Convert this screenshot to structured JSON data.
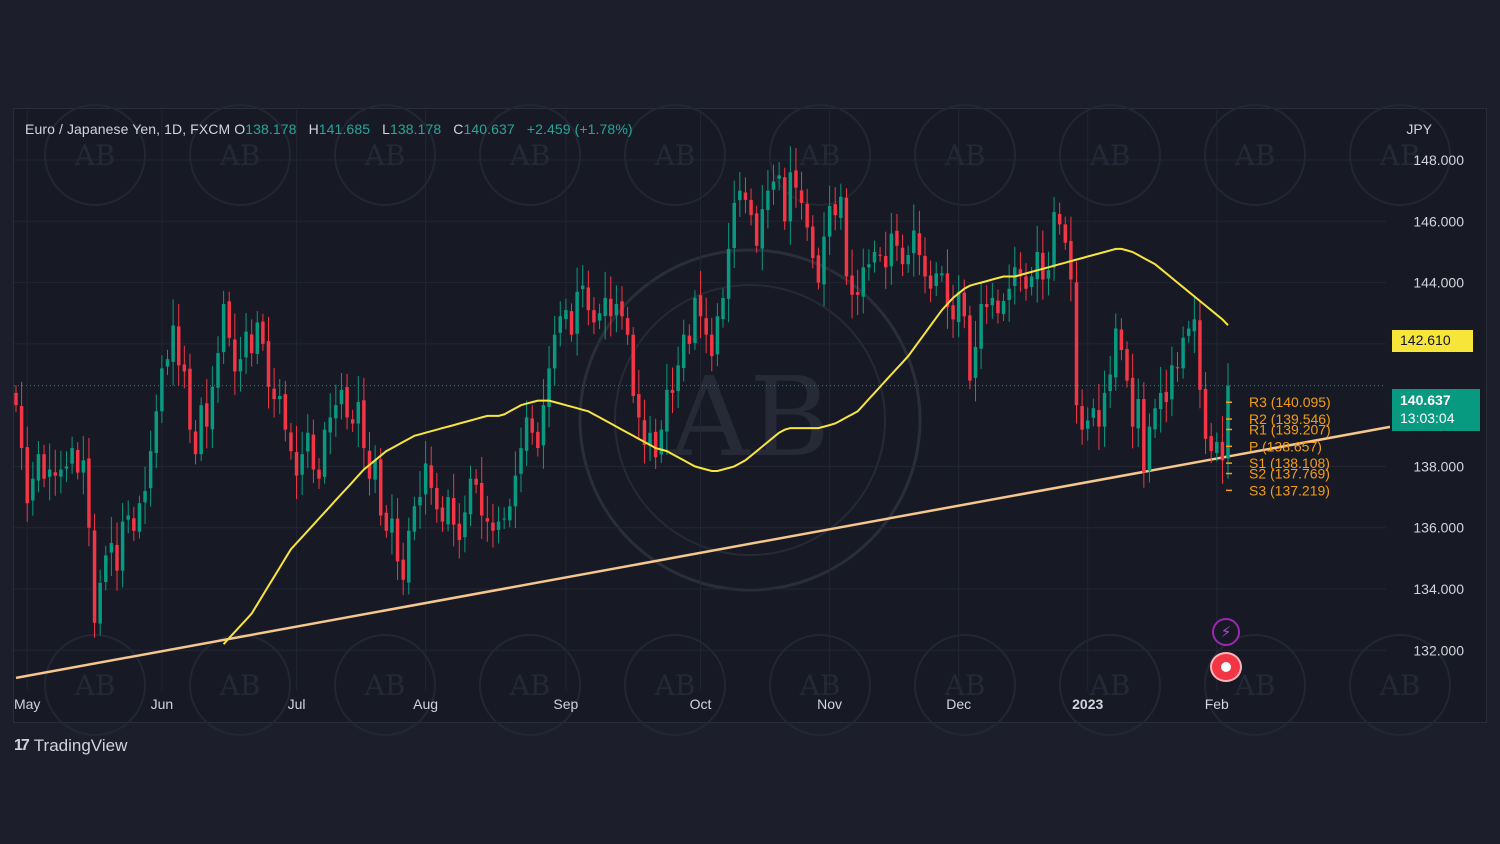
{
  "legend": {
    "symbol": "Euro / Japanese Yen, 1D, FXCM",
    "open_label": "O",
    "open": "138.178",
    "high_label": "H",
    "high": "141.685",
    "low_label": "L",
    "low": "138.178",
    "close_label": "C",
    "close": "140.637",
    "change": "+2.459 (+1.78%)"
  },
  "colors": {
    "background": "#171a24",
    "up": "#089981",
    "down": "#f23645",
    "sma": "#f7e53a",
    "trendline": "#f5c78e",
    "pivots": "#f59e0b"
  },
  "price_tags": {
    "sma_value": "142.610",
    "last_price": "140.637",
    "countdown": "13:03:04"
  },
  "footer": {
    "brand": "TradingView"
  },
  "chart_data": {
    "type": "candlestick",
    "currency": "JPY",
    "ylim": [
      130.9,
      149.6
    ],
    "y_ticks": [
      "148.000",
      "146.000",
      "144.000",
      "142.000",
      "138.000",
      "136.000",
      "134.000",
      "132.000"
    ],
    "month_labels": [
      "May",
      "Jun",
      "Jul",
      "Aug",
      "Sep",
      "Oct",
      "Nov",
      "Dec",
      "2023",
      "Feb"
    ],
    "month_positions": [
      2,
      26,
      50,
      73,
      98,
      122,
      145,
      168,
      191,
      214
    ],
    "pivot_levels": [
      {
        "label": "R3",
        "value": 140.095
      },
      {
        "label": "R2",
        "value": 139.546
      },
      {
        "label": "R1",
        "value": 139.207
      },
      {
        "label": "P",
        "value": 138.657
      },
      {
        "label": "S1",
        "value": 138.108
      },
      {
        "label": "S2",
        "value": 137.769
      },
      {
        "label": "S3",
        "value": 137.219
      }
    ],
    "last_price": 140.637,
    "sma_last": 142.61,
    "trendline": [
      [
        0,
        131.1
      ],
      [
        226,
        138.66
      ]
    ],
    "closes": [
      140.0,
      138.6,
      136.8,
      137.6,
      138.4,
      137.6,
      137.9,
      137.7,
      137.9,
      138.0,
      138.6,
      137.8,
      138.2,
      136.0,
      132.9,
      134.2,
      135.1,
      135.5,
      134.6,
      136.2,
      136.4,
      135.9,
      136.8,
      137.2,
      138.5,
      139.8,
      141.2,
      141.5,
      142.6,
      141.3,
      141.1,
      139.2,
      138.4,
      140.0,
      139.3,
      140.6,
      141.7,
      143.3,
      142.2,
      141.1,
      141.5,
      142.4,
      141.7,
      142.7,
      142.0,
      140.6,
      140.2,
      140.3,
      139.2,
      138.5,
      137.7,
      138.4,
      139.1,
      137.9,
      137.6,
      139.2,
      139.6,
      140.0,
      140.5,
      139.6,
      139.4,
      140.1,
      138.6,
      137.6,
      138.2,
      136.4,
      135.9,
      136.3,
      134.9,
      134.3,
      135.9,
      136.7,
      137.0,
      138.1,
      137.3,
      136.6,
      136.2,
      137.0,
      136.1,
      135.6,
      136.5,
      137.6,
      137.4,
      136.4,
      136.2,
      135.9,
      136.2,
      136.3,
      136.7,
      137.7,
      138.6,
      139.6,
      139.1,
      138.6,
      140.0,
      141.2,
      142.3,
      142.9,
      143.1,
      142.3,
      143.7,
      143.9,
      143.1,
      142.7,
      143.0,
      143.5,
      142.9,
      143.3,
      142.9,
      142.3,
      140.3,
      139.6,
      138.7,
      139.1,
      138.3,
      139.2,
      140.5,
      140.4,
      141.3,
      142.3,
      142.0,
      143.5,
      142.9,
      142.3,
      141.6,
      142.9,
      143.5,
      145.1,
      146.6,
      147.0,
      146.7,
      146.2,
      145.2,
      146.4,
      147.0,
      147.3,
      147.5,
      146.0,
      147.6,
      147.1,
      146.6,
      145.8,
      144.8,
      144.0,
      145.5,
      146.5,
      146.2,
      146.8,
      144.2,
      143.6,
      143.6,
      144.5,
      144.6,
      145.0,
      144.9,
      144.5,
      145.6,
      145.2,
      144.6,
      144.9,
      145.7,
      144.9,
      144.2,
      143.8,
      144.3,
      144.3,
      143.2,
      142.8,
      143.7,
      142.9,
      140.8,
      141.9,
      143.3,
      143.2,
      143.5,
      143.0,
      143.4,
      143.8,
      144.5,
      144.2,
      143.8,
      144.2,
      145.0,
      144.1,
      144.4,
      146.3,
      145.9,
      145.3,
      144.1,
      140.0,
      139.2,
      139.5,
      139.9,
      139.3,
      140.4,
      141.0,
      142.5,
      141.8,
      140.8,
      139.3,
      140.2,
      137.8,
      139.3,
      139.9,
      140.4,
      140.1,
      141.3,
      141.2,
      142.2,
      142.5,
      142.8,
      140.5,
      138.9,
      138.5,
      138.8,
      138.2,
      140.637
    ],
    "sma": [
      132.2,
      132.4,
      132.6,
      132.8,
      133.0,
      133.2,
      133.5,
      133.8,
      134.1,
      134.4,
      134.7,
      135.0,
      135.3,
      135.5,
      135.7,
      135.9,
      136.1,
      136.3,
      136.5,
      136.7,
      136.9,
      137.1,
      137.3,
      137.5,
      137.7,
      137.9,
      138.05,
      138.2,
      138.35,
      138.5,
      138.6,
      138.7,
      138.8,
      138.9,
      139.0,
      139.05,
      139.1,
      139.15,
      139.2,
      139.25,
      139.3,
      139.35,
      139.4,
      139.45,
      139.5,
      139.55,
      139.6,
      139.65,
      139.65,
      139.65,
      139.7,
      139.8,
      139.9,
      140.0,
      140.05,
      140.1,
      140.15,
      140.15,
      140.15,
      140.1,
      140.05,
      140.0,
      139.95,
      139.9,
      139.85,
      139.8,
      139.7,
      139.6,
      139.5,
      139.4,
      139.3,
      139.2,
      139.1,
      139.0,
      138.9,
      138.8,
      138.7,
      138.6,
      138.55,
      138.5,
      138.4,
      138.3,
      138.2,
      138.1,
      138.0,
      137.95,
      137.9,
      137.85,
      137.85,
      137.9,
      137.95,
      138.0,
      138.1,
      138.2,
      138.35,
      138.5,
      138.65,
      138.8,
      138.95,
      139.1,
      139.2,
      139.25,
      139.25,
      139.25,
      139.25,
      139.25,
      139.25,
      139.3,
      139.35,
      139.4,
      139.5,
      139.6,
      139.7,
      139.8,
      140.0,
      140.2,
      140.4,
      140.6,
      140.8,
      141.0,
      141.2,
      141.4,
      141.6,
      141.85,
      142.1,
      142.35,
      142.6,
      142.85,
      143.1,
      143.3,
      143.5,
      143.65,
      143.8,
      143.9,
      143.95,
      144.0,
      144.05,
      144.1,
      144.15,
      144.2,
      144.2,
      144.2,
      144.25,
      144.3,
      144.35,
      144.4,
      144.45,
      144.5,
      144.55,
      144.6,
      144.65,
      144.7,
      144.75,
      144.8,
      144.85,
      144.9,
      144.95,
      145.0,
      145.05,
      145.1,
      145.1,
      145.05,
      145.0,
      144.9,
      144.8,
      144.7,
      144.6,
      144.45,
      144.3,
      144.15,
      144.0,
      143.85,
      143.7,
      143.55,
      143.4,
      143.25,
      143.1,
      142.95,
      142.8,
      142.61
    ]
  }
}
